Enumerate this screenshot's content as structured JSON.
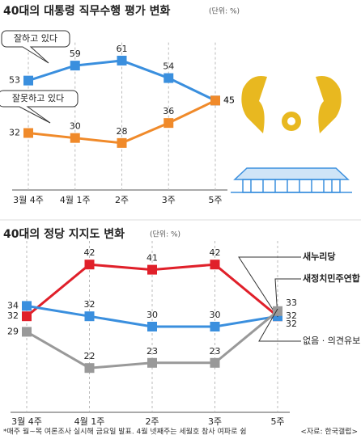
{
  "chart_data": [
    {
      "type": "line",
      "title": "40대의 대통령 직무수행 평가 변화",
      "subtitle": "(단위: %)",
      "categories": [
        "3월 4주",
        "4월 1주",
        "2주",
        "3주",
        "5주"
      ],
      "series": [
        {
          "name": "잘하고 있다",
          "color": "#3a8fde",
          "values": [
            53,
            59,
            61,
            54,
            45
          ]
        },
        {
          "name": "잘못하고 있다",
          "color": "#f08a2a",
          "values": [
            32,
            30,
            28,
            36,
            45
          ]
        }
      ],
      "ylim": [
        15,
        65
      ]
    },
    {
      "type": "line",
      "title": "40대의 정당 지지도 변화",
      "subtitle": "(단위: %)",
      "categories": [
        "3월 4주",
        "4월 1주",
        "2주",
        "3주",
        "5주"
      ],
      "series": [
        {
          "name": "새누리당",
          "color": "#e0202a",
          "values": [
            32,
            42,
            41,
            42,
            32
          ]
        },
        {
          "name": "새정치민주연합",
          "color": "#3a8fde",
          "values": [
            34,
            32,
            30,
            30,
            32
          ]
        },
        {
          "name": "없음 · 의견유보",
          "color": "#999999",
          "values": [
            29,
            22,
            23,
            23,
            33
          ]
        }
      ],
      "ylim": [
        15,
        45
      ]
    }
  ],
  "footnote": "*매주 월~목 여론조사 실시해 금요일 발표. 4월 넷째주는 세월호 참사 여파로 쉼",
  "source": "<자료: 한국갤럽>"
}
